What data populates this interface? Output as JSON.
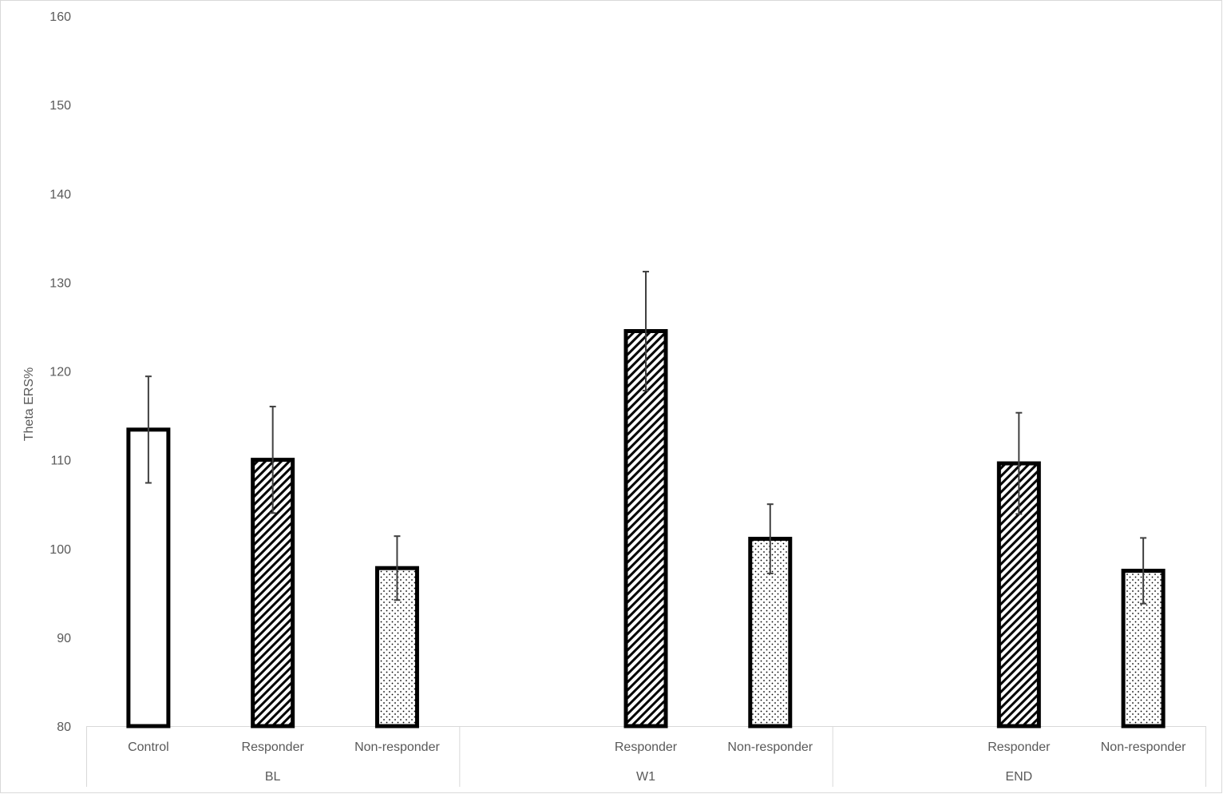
{
  "chart_data": {
    "type": "bar",
    "title": "",
    "xlabel": "",
    "ylabel": "Theta ERS%",
    "ylim": [
      80,
      160
    ],
    "yticks": [
      80,
      90,
      100,
      110,
      120,
      130,
      140,
      150,
      160
    ],
    "grid": false,
    "legend": "none",
    "groups": [
      {
        "label": "BL",
        "bars": [
          {
            "label": "Control",
            "value": 113.4,
            "error": 6.0,
            "pattern": "solid-white"
          },
          {
            "label": "Responder",
            "value": 110.0,
            "error": 6.0,
            "pattern": "diagonal-hatch"
          },
          {
            "label": "Non-responder",
            "value": 97.8,
            "error": 3.6,
            "pattern": "dots"
          }
        ]
      },
      {
        "label": "W1",
        "bars": [
          {
            "label": "Responder",
            "value": 124.5,
            "error": 6.7,
            "pattern": "diagonal-hatch"
          },
          {
            "label": "Non-responder",
            "value": 101.1,
            "error": 3.9,
            "pattern": "dots"
          }
        ]
      },
      {
        "label": "END",
        "bars": [
          {
            "label": "Responder",
            "value": 109.6,
            "error": 5.7,
            "pattern": "diagonal-hatch"
          },
          {
            "label": "Non-responder",
            "value": 97.5,
            "error": 3.7,
            "pattern": "dots"
          }
        ]
      }
    ],
    "colors": {
      "bar_outline": "#000000",
      "bar_fill": "#ffffff",
      "error_bar": "#404040",
      "axis_text": "#595959",
      "axis_line": "#d9d9d9"
    }
  }
}
